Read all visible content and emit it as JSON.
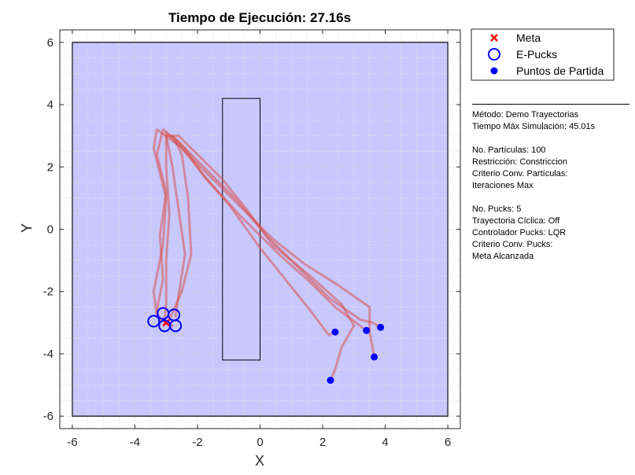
{
  "chart_data": {
    "type": "scatter",
    "title": "Tiempo de Ejecución: 27.16s",
    "xlabel": "X",
    "ylabel": "Y",
    "xlim": [
      -6.4,
      6.4
    ],
    "ylim": [
      -6.4,
      6.4
    ],
    "xticks": [
      -6,
      -4,
      -2,
      0,
      2,
      4,
      6
    ],
    "yticks": [
      -6,
      -4,
      -2,
      0,
      2,
      4,
      6
    ],
    "grid": true,
    "arena": {
      "x": [
        -6,
        6
      ],
      "y": [
        -6,
        6
      ],
      "color": "#c8c8ff"
    },
    "obstacle": {
      "x": [
        -1.2,
        0
      ],
      "y": [
        -4.2,
        4.2
      ],
      "color": "#c8c8ff"
    },
    "legend": {
      "position": "outside-top-right",
      "entries": [
        {
          "label": "Meta",
          "marker": "x",
          "color": "#ff0000"
        },
        {
          "label": "E-Pucks",
          "marker": "open-circle",
          "color": "#0000ff"
        },
        {
          "label": "Puntos de Partida",
          "marker": "filled-circle",
          "color": "#0000ff"
        }
      ]
    },
    "series": [
      {
        "name": "Meta",
        "marker": "x",
        "color": "#ff0000",
        "points": [
          [
            -3.0,
            -3.0
          ]
        ]
      },
      {
        "name": "E-Pucks",
        "marker": "open-circle",
        "color": "#0000ff",
        "points": [
          [
            -3.4,
            -2.95
          ],
          [
            -3.1,
            -2.7
          ],
          [
            -2.75,
            -2.75
          ],
          [
            -3.05,
            -3.1
          ],
          [
            -2.7,
            -3.1
          ]
        ]
      },
      {
        "name": "Puntos de Partida",
        "marker": "filled-circle",
        "color": "#0000ff",
        "points": [
          [
            2.4,
            -3.3
          ],
          [
            3.4,
            -3.25
          ],
          [
            3.85,
            -3.15
          ],
          [
            3.65,
            -4.1
          ],
          [
            2.25,
            -4.85
          ]
        ]
      }
    ],
    "trajectories": {
      "color": "#d9534f",
      "paths": [
        [
          [
            2.4,
            -3.3
          ],
          [
            2.2,
            -3.4
          ],
          [
            1.6,
            -2.6
          ],
          [
            0.8,
            -1.6
          ],
          [
            0.0,
            -0.6
          ],
          [
            -1.0,
            0.8
          ],
          [
            -1.8,
            1.7
          ],
          [
            -2.4,
            2.6
          ],
          [
            -2.8,
            3.0
          ],
          [
            -2.5,
            2.4
          ],
          [
            -2.3,
            1.0
          ],
          [
            -2.2,
            -0.8
          ],
          [
            -2.5,
            -2.0
          ],
          [
            -2.9,
            -2.9
          ]
        ],
        [
          [
            3.4,
            -3.25
          ],
          [
            3.2,
            -3.1
          ],
          [
            2.4,
            -2.5
          ],
          [
            1.6,
            -1.7
          ],
          [
            0.6,
            -0.8
          ],
          [
            -0.6,
            0.4
          ],
          [
            -1.6,
            1.5
          ],
          [
            -2.5,
            2.6
          ],
          [
            -3.0,
            3.1
          ],
          [
            -3.0,
            2.0
          ],
          [
            -2.9,
            0.5
          ],
          [
            -3.0,
            -1.0
          ],
          [
            -3.0,
            -2.4
          ],
          [
            -3.05,
            -3.0
          ]
        ],
        [
          [
            3.85,
            -3.15
          ],
          [
            3.6,
            -3.0
          ],
          [
            3.2,
            -2.9
          ],
          [
            2.2,
            -2.2
          ],
          [
            1.2,
            -1.2
          ],
          [
            0.2,
            -0.2
          ],
          [
            -0.8,
            1.0
          ],
          [
            -1.8,
            2.0
          ],
          [
            -2.6,
            2.8
          ],
          [
            -3.1,
            3.2
          ],
          [
            -3.3,
            2.4
          ],
          [
            -3.0,
            1.2
          ],
          [
            -3.2,
            -0.2
          ],
          [
            -3.1,
            -1.6
          ],
          [
            -3.3,
            -2.6
          ],
          [
            -3.2,
            -2.95
          ]
        ],
        [
          [
            3.65,
            -4.1
          ],
          [
            3.5,
            -3.3
          ],
          [
            3.5,
            -2.8
          ],
          [
            3.5,
            -2.5
          ],
          [
            2.5,
            -1.8
          ],
          [
            1.4,
            -1.1
          ],
          [
            0.4,
            -0.3
          ],
          [
            -0.6,
            0.7
          ],
          [
            -1.7,
            1.8
          ],
          [
            -2.6,
            2.7
          ],
          [
            -3.3,
            3.2
          ],
          [
            -3.4,
            2.6
          ],
          [
            -3.0,
            1.0
          ],
          [
            -3.1,
            -0.5
          ],
          [
            -3.4,
            -2.0
          ],
          [
            -3.3,
            -2.8
          ],
          [
            -2.8,
            -3.1
          ]
        ],
        [
          [
            2.25,
            -4.85
          ],
          [
            2.4,
            -4.5
          ],
          [
            2.6,
            -3.8
          ],
          [
            3.0,
            -3.1
          ],
          [
            2.6,
            -2.4
          ],
          [
            1.6,
            -1.5
          ],
          [
            0.4,
            -0.5
          ],
          [
            -0.4,
            0.6
          ],
          [
            -1.2,
            1.6
          ],
          [
            -2.0,
            2.4
          ],
          [
            -2.6,
            3.0
          ],
          [
            -3.0,
            3.0
          ],
          [
            -2.8,
            2.0
          ],
          [
            -2.6,
            0.6
          ],
          [
            -2.4,
            -0.8
          ],
          [
            -2.6,
            -2.1
          ],
          [
            -2.7,
            -2.8
          ]
        ]
      ]
    }
  },
  "info": [
    "Método: Demo Trayectorias",
    "Tiempo Máx Simulación: 45.01s",
    "",
    "No. Partículas: 100",
    "Restricción: Constriccion",
    "Criterio Conv. Partículas:",
    "Iteraciones Max",
    "",
    "No. Pucks: 5",
    "Trayectoria Cíclica: Off",
    "Controlador Pucks: LQR",
    "Criterio Conv. Pucks:",
    "Meta Alcanzada"
  ]
}
